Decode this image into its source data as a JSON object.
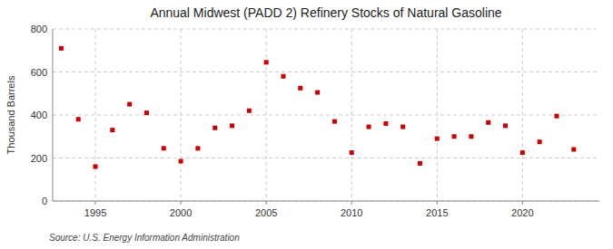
{
  "chart_data": {
    "type": "scatter",
    "title": "Annual Midwest (PADD 2) Refinery Stocks of Natural Gasoline",
    "ylabel": "Thousand Barrels",
    "annotations": [
      "Source: U.S. Energy Information Administration"
    ],
    "x": [
      1993,
      1994,
      1995,
      1996,
      1997,
      1998,
      1999,
      2000,
      2001,
      2002,
      2003,
      2004,
      2005,
      2006,
      2007,
      2008,
      2009,
      2010,
      2011,
      2012,
      2013,
      2014,
      2015,
      2016,
      2017,
      2018,
      2019,
      2020,
      2021,
      2022,
      2023
    ],
    "values": [
      710,
      380,
      160,
      330,
      450,
      410,
      245,
      185,
      245,
      340,
      350,
      420,
      645,
      580,
      525,
      505,
      370,
      225,
      345,
      360,
      345,
      175,
      290,
      300,
      300,
      365,
      350,
      225,
      275,
      395,
      240
    ],
    "color": "#cc0000",
    "marker": "square",
    "xlim": [
      1992.5,
      2024.5
    ],
    "xticks": [
      1995,
      2000,
      2005,
      2010,
      2015,
      2020
    ],
    "ylim": [
      0,
      800
    ],
    "yticks": [
      0,
      200,
      400,
      600,
      800
    ],
    "grid": true
  }
}
